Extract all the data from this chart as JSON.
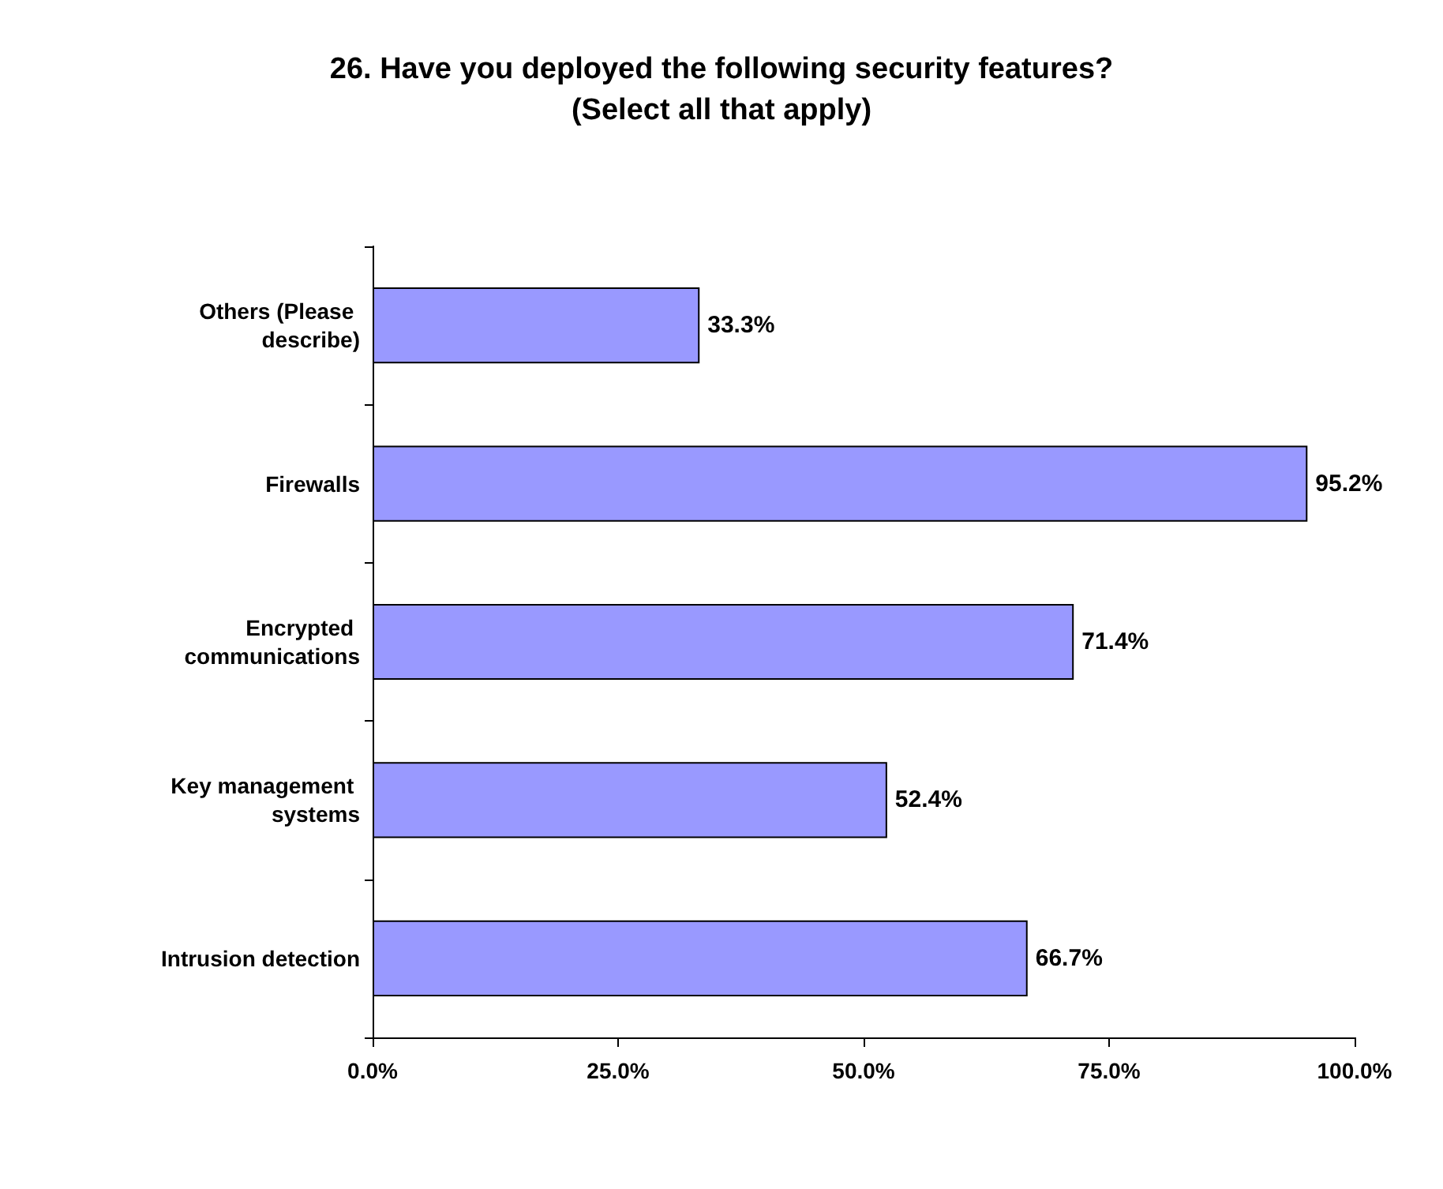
{
  "chart_data": {
    "type": "bar",
    "orientation": "horizontal",
    "title": "26. Have you deployed the following security features?\n(Select all that apply)",
    "categories": [
      "Others (Please describe)",
      "Firewalls",
      "Encrypted communications",
      "Key management systems",
      "Intrusion detection"
    ],
    "values": [
      33.3,
      95.2,
      71.4,
      52.4,
      66.7
    ],
    "value_labels": [
      "33.3%",
      "95.2%",
      "71.4%",
      "52.4%",
      "66.7%"
    ],
    "color": "#9999ff",
    "xlim": [
      0,
      100
    ],
    "xticks": [
      {
        "value": 0,
        "label": "0.0%"
      },
      {
        "value": 25,
        "label": "25.0%"
      },
      {
        "value": 50,
        "label": "50.0%"
      },
      {
        "value": 75,
        "label": "75.0%"
      },
      {
        "value": 100,
        "label": "100.0%"
      }
    ],
    "grid": false
  }
}
